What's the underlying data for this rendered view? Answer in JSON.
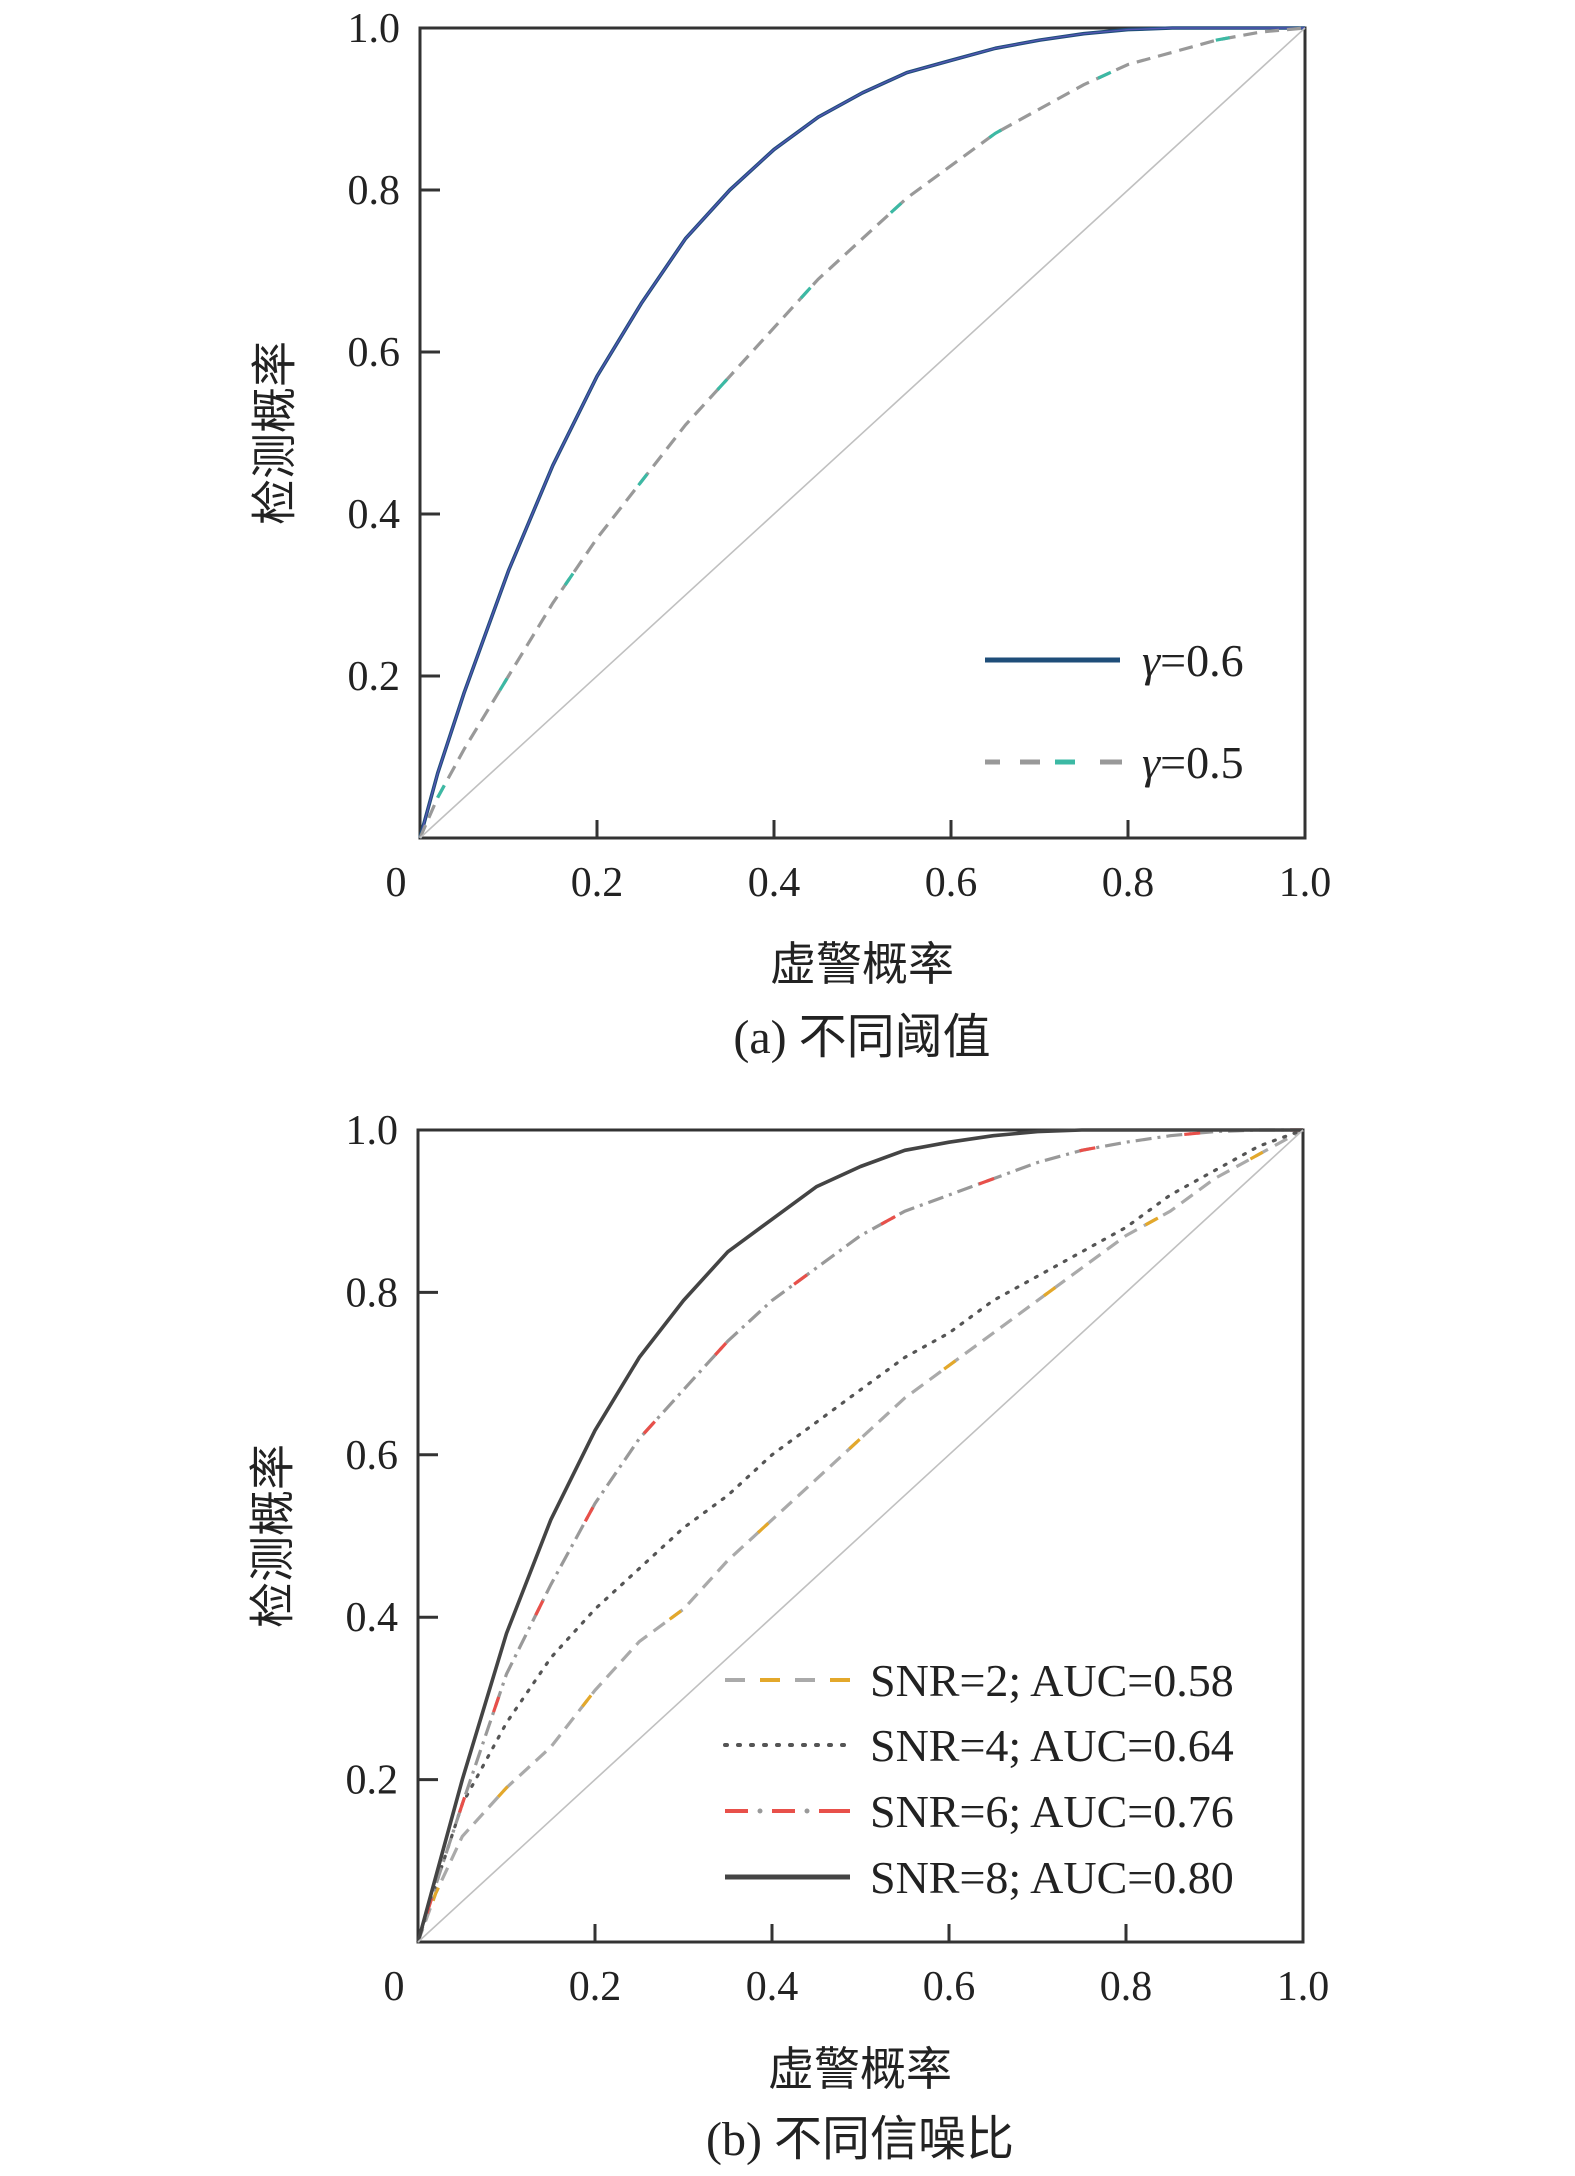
{
  "figure": {
    "panels": [
      {
        "xlabel": "虚警概率",
        "ylabel": "检测概率",
        "caption": "(a) 不同阈值",
        "x_ticks": [
          "0",
          "0.2",
          "0.4",
          "0.6",
          "0.8",
          "1.0"
        ],
        "y_ticks": [
          "0.2",
          "0.4",
          "0.6",
          "0.8",
          "1.0"
        ],
        "legend": [
          {
            "label_prefix": "γ",
            "label_suffix": "=0.6"
          },
          {
            "label_prefix": "γ",
            "label_suffix": "=0.5"
          }
        ]
      },
      {
        "xlabel": "虚警概率",
        "ylabel": "检测概率",
        "caption": "(b) 不同信噪比",
        "x_ticks": [
          "0",
          "0.2",
          "0.4",
          "0.6",
          "0.8",
          "1.0"
        ],
        "y_ticks": [
          "0.2",
          "0.4",
          "0.6",
          "0.8",
          "1.0"
        ],
        "legend": [
          {
            "label": "SNR=2; AUC=0.58"
          },
          {
            "label": "SNR=4; AUC=0.64"
          },
          {
            "label": "SNR=6; AUC=0.76"
          },
          {
            "label": "SNR=8; AUC=0.80"
          }
        ]
      }
    ]
  },
  "chart_data": [
    {
      "type": "line",
      "xlabel": "虚警概率",
      "ylabel": "检测概率",
      "xlim": [
        0,
        1
      ],
      "ylim": [
        0,
        1
      ],
      "grid": false,
      "legend_position": "bottom-right",
      "series": [
        {
          "name": "γ=0.6",
          "style": "solid",
          "colors": [
            "#1f4e79",
            "#6a5acd"
          ],
          "x": [
            0.0,
            0.02,
            0.05,
            0.1,
            0.15,
            0.2,
            0.25,
            0.3,
            0.35,
            0.4,
            0.45,
            0.5,
            0.55,
            0.6,
            0.65,
            0.7,
            0.75,
            0.8,
            0.85,
            0.9,
            0.95,
            1.0
          ],
          "y": [
            0.0,
            0.08,
            0.18,
            0.33,
            0.46,
            0.57,
            0.66,
            0.74,
            0.8,
            0.85,
            0.89,
            0.92,
            0.945,
            0.96,
            0.975,
            0.985,
            0.993,
            0.998,
            1.0,
            1.0,
            1.0,
            1.0
          ]
        },
        {
          "name": "γ=0.5",
          "style": "dashed",
          "colors": [
            "#999999",
            "#3cb9a4"
          ],
          "x": [
            0.0,
            0.02,
            0.05,
            0.1,
            0.15,
            0.2,
            0.25,
            0.3,
            0.35,
            0.4,
            0.45,
            0.5,
            0.55,
            0.6,
            0.65,
            0.7,
            0.75,
            0.8,
            0.85,
            0.9,
            0.95,
            1.0
          ],
          "y": [
            0.0,
            0.05,
            0.11,
            0.2,
            0.29,
            0.37,
            0.44,
            0.51,
            0.57,
            0.63,
            0.69,
            0.74,
            0.79,
            0.83,
            0.87,
            0.9,
            0.93,
            0.955,
            0.97,
            0.985,
            0.995,
            1.0
          ]
        },
        {
          "name": "",
          "style": "reference",
          "colors": [
            "#c0c0c0"
          ],
          "x": [
            0,
            1
          ],
          "y": [
            0,
            1
          ]
        }
      ]
    },
    {
      "type": "line",
      "xlabel": "虚警概率",
      "ylabel": "检测概率",
      "xlim": [
        0,
        1
      ],
      "ylim": [
        0,
        1
      ],
      "grid": false,
      "legend_position": "bottom-right",
      "series": [
        {
          "name": "SNR=2; AUC=0.58",
          "style": "dashed",
          "colors": [
            "#aaaaaa",
            "#e3a82b"
          ],
          "x": [
            0.0,
            0.02,
            0.05,
            0.1,
            0.15,
            0.2,
            0.25,
            0.3,
            0.35,
            0.4,
            0.45,
            0.5,
            0.55,
            0.6,
            0.65,
            0.7,
            0.75,
            0.8,
            0.85,
            0.9,
            0.95,
            1.0
          ],
          "y": [
            0.0,
            0.06,
            0.13,
            0.19,
            0.24,
            0.31,
            0.37,
            0.41,
            0.47,
            0.52,
            0.57,
            0.62,
            0.67,
            0.71,
            0.75,
            0.79,
            0.83,
            0.87,
            0.9,
            0.94,
            0.97,
            1.0
          ]
        },
        {
          "name": "SNR=4; AUC=0.64",
          "style": "dotted",
          "colors": [
            "#555555"
          ],
          "x": [
            0.0,
            0.02,
            0.05,
            0.1,
            0.15,
            0.2,
            0.25,
            0.3,
            0.35,
            0.4,
            0.45,
            0.5,
            0.55,
            0.6,
            0.65,
            0.7,
            0.75,
            0.8,
            0.85,
            0.9,
            0.95,
            1.0
          ],
          "y": [
            0.0,
            0.07,
            0.17,
            0.27,
            0.35,
            0.41,
            0.46,
            0.51,
            0.55,
            0.6,
            0.64,
            0.68,
            0.72,
            0.75,
            0.79,
            0.82,
            0.85,
            0.88,
            0.92,
            0.95,
            0.98,
            1.0
          ]
        },
        {
          "name": "SNR=6; AUC=0.76",
          "style": "dashdot",
          "colors": [
            "#999999",
            "#e8504a"
          ],
          "x": [
            0.0,
            0.02,
            0.05,
            0.1,
            0.15,
            0.2,
            0.25,
            0.3,
            0.35,
            0.4,
            0.45,
            0.5,
            0.55,
            0.6,
            0.65,
            0.7,
            0.75,
            0.8,
            0.85,
            0.9,
            0.95,
            1.0
          ],
          "y": [
            0.0,
            0.07,
            0.17,
            0.33,
            0.44,
            0.54,
            0.62,
            0.68,
            0.74,
            0.79,
            0.83,
            0.87,
            0.9,
            0.92,
            0.94,
            0.96,
            0.975,
            0.985,
            0.993,
            0.998,
            1.0,
            1.0
          ]
        },
        {
          "name": "SNR=8; AUC=0.80",
          "style": "solid",
          "colors": [
            "#444444"
          ],
          "x": [
            0.0,
            0.02,
            0.05,
            0.1,
            0.15,
            0.2,
            0.25,
            0.3,
            0.35,
            0.4,
            0.45,
            0.5,
            0.55,
            0.6,
            0.65,
            0.7,
            0.75,
            0.8,
            0.85,
            0.9,
            0.95,
            1.0
          ],
          "y": [
            0.0,
            0.08,
            0.2,
            0.38,
            0.52,
            0.63,
            0.72,
            0.79,
            0.85,
            0.89,
            0.93,
            0.955,
            0.975,
            0.985,
            0.993,
            0.998,
            1.0,
            1.0,
            1.0,
            1.0,
            1.0,
            1.0
          ]
        },
        {
          "name": "",
          "style": "reference",
          "colors": [
            "#c0c0c0"
          ],
          "x": [
            0,
            1
          ],
          "y": [
            0,
            1
          ]
        }
      ]
    }
  ]
}
